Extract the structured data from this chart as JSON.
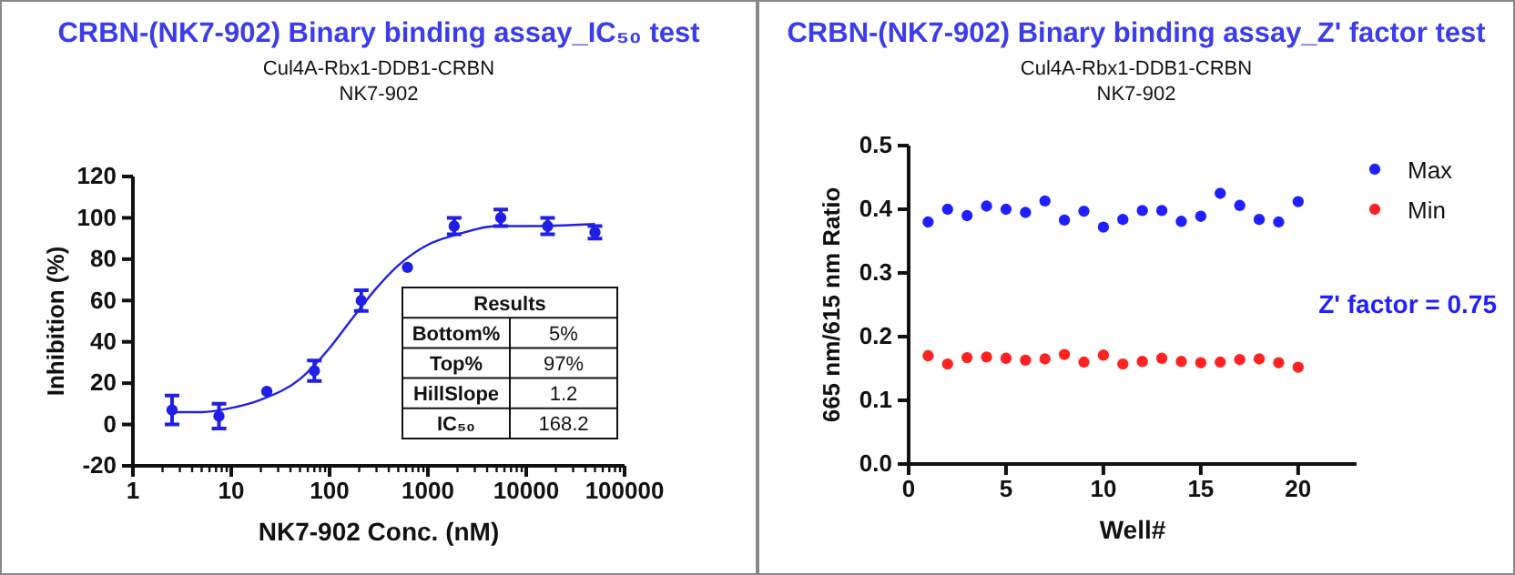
{
  "chart_data": [
    {
      "type": "scatter",
      "title": "CRBN-(NK7-902) Binary binding assay_IC₅₀ test",
      "subtitle": "Cul4A-Rbx1-DDB1-CRBN\nNK7-902",
      "xlabel": "NK7-902 Conc. (nM)",
      "ylabel": "Inhibition (%)",
      "log": "x",
      "xlim": [
        1,
        100000
      ],
      "xticks": [
        1,
        10,
        100,
        1000,
        10000,
        100000
      ],
      "ylim": [
        -20,
        120
      ],
      "yticks": [
        -20,
        0,
        20,
        40,
        60,
        80,
        100,
        120
      ],
      "grid": false,
      "legend": false,
      "marker": "circle",
      "series": [
        {
          "color": "#1f1fe6",
          "x": [
            2.5,
            7.5,
            23,
            70,
            210,
            620,
            1850,
            5500,
            16500,
            50000
          ],
          "values": [
            7,
            4,
            16,
            26,
            60,
            76,
            96,
            100,
            96,
            93
          ],
          "errors": [
            7,
            6,
            null,
            5,
            5,
            null,
            4,
            4,
            4,
            3
          ]
        },
        {
          "type": "line",
          "marker": "none",
          "color": "#1f1fe6",
          "x": [
            2.5,
            5,
            10,
            20,
            50,
            100,
            168.2,
            300,
            500,
            1000,
            2000,
            5000,
            10000,
            50000
          ],
          "values": [
            6,
            6,
            8,
            12,
            22,
            37,
            51,
            66,
            77,
            87,
            92,
            96,
            96,
            97
          ]
        }
      ],
      "annotations": [
        "Results",
        "Bottom%",
        "5%",
        "Top%",
        "97%",
        "HillSlope",
        "1.2",
        "IC₅₀",
        "168.2"
      ]
    },
    {
      "type": "scatter",
      "title": "CRBN-(NK7-902) Binary binding assay_Z' factor test",
      "subtitle": "Cul4A-Rbx1-DDB1-CRBN\nNK7-902",
      "xlabel": "Well#",
      "ylabel": "665 nm/615 nm Ratio",
      "xlim": [
        0,
        23
      ],
      "xticks": [
        0,
        5,
        10,
        15,
        20
      ],
      "ylim": [
        0,
        0.5
      ],
      "yticks": [
        {
          "value": 0,
          "label": "0.0"
        },
        0.1,
        0.2,
        0.3,
        0.4,
        0.5
      ],
      "grid": false,
      "legend": "top right",
      "marker": "circle",
      "x": [
        1,
        2,
        3,
        4,
        5,
        6,
        7,
        8,
        9,
        10,
        11,
        12,
        13,
        14,
        15,
        16,
        17,
        18,
        19,
        20
      ],
      "series": [
        {
          "name": "Max",
          "color": "#1f1fff",
          "values": [
            0.38,
            0.4,
            0.39,
            0.405,
            0.4,
            0.395,
            0.413,
            0.383,
            0.397,
            0.372,
            0.384,
            0.398,
            0.398,
            0.381,
            0.389,
            0.425,
            0.406,
            0.384,
            0.38,
            0.412
          ]
        },
        {
          "name": "Min",
          "color": "#ff2222",
          "values": [
            0.17,
            0.157,
            0.167,
            0.168,
            0.166,
            0.163,
            0.165,
            0.172,
            0.16,
            0.171,
            0.157,
            0.161,
            0.166,
            0.161,
            0.159,
            0.16,
            0.164,
            0.165,
            0.159,
            0.152
          ]
        }
      ],
      "annotations": [
        "Z' factor = 0.75"
      ]
    }
  ]
}
